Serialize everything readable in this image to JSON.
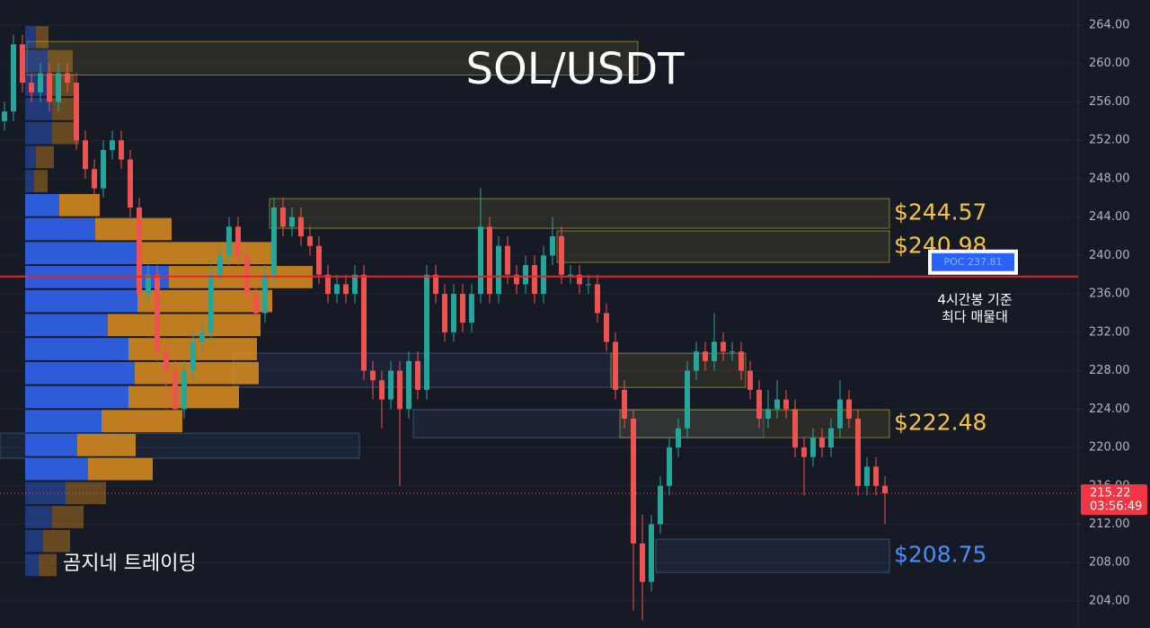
{
  "chart_data": {
    "type": "candlestick",
    "title": "SOL/USDT",
    "watermark": "곰지네 트레이딩",
    "ylim": [
      201.19,
      266.62
    ],
    "yticks": [
      {
        "value": 204,
        "label": "204.00"
      },
      {
        "value": 208,
        "label": "208.00"
      },
      {
        "value": 212,
        "label": "212.00"
      },
      {
        "value": 216,
        "label": "216.00"
      },
      {
        "value": 220,
        "label": "220.00"
      },
      {
        "value": 224,
        "label": "224.00"
      },
      {
        "value": 228,
        "label": "228.00"
      },
      {
        "value": 232,
        "label": "232.00"
      },
      {
        "value": 236,
        "label": "236.00"
      },
      {
        "value": 240,
        "label": "240.00"
      },
      {
        "value": 244,
        "label": "244.00"
      },
      {
        "value": 248,
        "label": "248.00"
      },
      {
        "value": 252,
        "label": "252.00"
      },
      {
        "value": 256,
        "label": "256.00"
      },
      {
        "value": 260,
        "label": "260.00"
      },
      {
        "value": 264,
        "label": "264.00"
      }
    ],
    "grid": true,
    "up_color": "#26a69a",
    "down_color": "#ef5350",
    "open": [
      254,
      255,
      262,
      258,
      257,
      259,
      256,
      259,
      258,
      252,
      249,
      247,
      251,
      252,
      250,
      245,
      236,
      238,
      230,
      228,
      224,
      228,
      231,
      232,
      238,
      240,
      243,
      240,
      236,
      234,
      238,
      245,
      243,
      244,
      242,
      241,
      238,
      236,
      237,
      236,
      238,
      228,
      227,
      225,
      228,
      224,
      229,
      226,
      238,
      236,
      232,
      236,
      233,
      236,
      243,
      236,
      241,
      238,
      237,
      239,
      236,
      240,
      242,
      238,
      238,
      237,
      237,
      234,
      231,
      226,
      223,
      210,
      206,
      212,
      216,
      220,
      222,
      228,
      230,
      229,
      231,
      230,
      230,
      228,
      226,
      223,
      224,
      225,
      224,
      220,
      219,
      221,
      220,
      222,
      225,
      223,
      216,
      218,
      216
    ],
    "high": [
      256,
      263,
      263,
      259,
      260,
      260,
      260,
      260,
      259,
      253,
      250,
      252,
      253,
      253,
      251,
      246,
      239,
      239,
      231,
      229,
      229,
      232,
      233,
      239,
      241,
      244,
      244,
      241,
      237,
      239,
      246,
      246,
      245,
      245,
      243,
      242,
      239,
      238,
      238,
      239,
      239,
      229,
      228,
      229,
      229,
      230,
      230,
      239,
      239,
      237,
      237,
      237,
      237,
      247,
      244,
      242,
      242,
      239,
      240,
      240,
      241,
      244,
      243,
      239,
      239,
      238,
      238,
      235,
      232,
      227,
      224,
      213,
      213,
      217,
      221,
      223,
      229,
      231,
      231,
      234,
      232,
      231,
      231,
      229,
      227,
      226,
      227,
      226,
      225,
      221,
      222,
      222,
      223,
      227,
      226,
      224,
      219,
      219,
      217
    ],
    "low": [
      253,
      254,
      257,
      256,
      256,
      255,
      255,
      257,
      251,
      248,
      246,
      246,
      250,
      249,
      244,
      235,
      235,
      229,
      224,
      223,
      223,
      227,
      230,
      231,
      237,
      239,
      239,
      235,
      233,
      233,
      237,
      242,
      242,
      241,
      240,
      237,
      235,
      235,
      235,
      235,
      227,
      225,
      222,
      224,
      216,
      223,
      225,
      225,
      235,
      231,
      231,
      232,
      232,
      235,
      235,
      235,
      237,
      236,
      236,
      235,
      235,
      239,
      237,
      237,
      236,
      236,
      233,
      230,
      225,
      222,
      203,
      202,
      205,
      211,
      215,
      219,
      221,
      227,
      228,
      228,
      229,
      229,
      227,
      225,
      222,
      222,
      223,
      223,
      219,
      215,
      218,
      219,
      219,
      221,
      222,
      215,
      215,
      215,
      212
    ],
    "close": [
      255,
      262,
      258,
      257,
      259,
      256,
      259,
      258,
      252,
      249,
      247,
      251,
      252,
      250,
      245,
      236,
      238,
      230,
      228,
      224,
      228,
      231,
      232,
      238,
      240,
      243,
      240,
      236,
      234,
      238,
      245,
      243,
      244,
      242,
      241,
      238,
      236,
      237,
      236,
      238,
      228,
      227,
      225,
      228,
      224,
      229,
      226,
      238,
      236,
      232,
      236,
      233,
      236,
      243,
      236,
      241,
      238,
      237,
      239,
      236,
      240,
      242,
      238,
      238,
      237,
      237,
      234,
      231,
      226,
      223,
      210,
      206,
      212,
      216,
      220,
      222,
      228,
      230,
      229,
      231,
      230,
      230,
      228,
      226,
      223,
      224,
      225,
      224,
      220,
      219,
      221,
      220,
      222,
      225,
      223,
      216,
      218,
      216,
      215.22
    ],
    "current_price": {
      "value": 215.22,
      "label": "215.22"
    },
    "countdown": "03:56:49",
    "poc": {
      "value": 237.81,
      "label": "POC  237.81",
      "color": "#e8222a"
    },
    "poc_note": [
      "4시간봉 기준",
      "최다 매물대"
    ],
    "zones": [
      {
        "low": 258.8,
        "high": 262.3,
        "start": 3,
        "end": 70,
        "color": "#c8b33a"
      },
      {
        "low": 242.84,
        "high": 245.93,
        "start": 30,
        "end": 98,
        "color": "#c8b33a",
        "label": "$244.57"
      },
      {
        "low": 239.28,
        "high": 242.56,
        "start": 62,
        "end": 98,
        "color": "#c8b33a",
        "label": "$240.98"
      },
      {
        "low": 226.26,
        "high": 229.82,
        "start": 26,
        "end": 67,
        "color": "#4a6fa5"
      },
      {
        "low": 226.26,
        "high": 229.82,
        "start": 68,
        "end": 82,
        "color": "#c8b33a"
      },
      {
        "low": 221.02,
        "high": 223.92,
        "start": 46,
        "end": 84,
        "color": "#4a6fa5"
      },
      {
        "low": 221.02,
        "high": 223.92,
        "start": 69,
        "end": 98,
        "color": "#c8b33a",
        "label": "$222.48"
      },
      {
        "low": 218.87,
        "high": 221.49,
        "start": 0,
        "end": 39,
        "color": "#4a6fa5"
      },
      {
        "low": 206.98,
        "high": 210.44,
        "start": 73,
        "end": 98,
        "color": "#4a6fa5",
        "label": "$208.75"
      }
    ],
    "volume_profile": {
      "step": 2.5,
      "buy_color": "#2f5fe0",
      "sell_color": "#e8951f",
      "levels": [
        261.5,
        259,
        256.5,
        254,
        251.5,
        249,
        246.5,
        244,
        241.5,
        239,
        236.5,
        234,
        231.5,
        229,
        226.5,
        224,
        221.5,
        219,
        216.5,
        214,
        211.5,
        209,
        206.5
      ],
      "buy": [
        12,
        25,
        30,
        30,
        30,
        12,
        10,
        38,
        78,
        125,
        160,
        125,
        92,
        115,
        122,
        115,
        85,
        58,
        70,
        45,
        30,
        20,
        15
      ],
      "sell": [
        14,
        28,
        25,
        30,
        30,
        20,
        15,
        45,
        85,
        150,
        160,
        150,
        170,
        143,
        138,
        123,
        90,
        65,
        72,
        45,
        35,
        30,
        20
      ]
    }
  }
}
